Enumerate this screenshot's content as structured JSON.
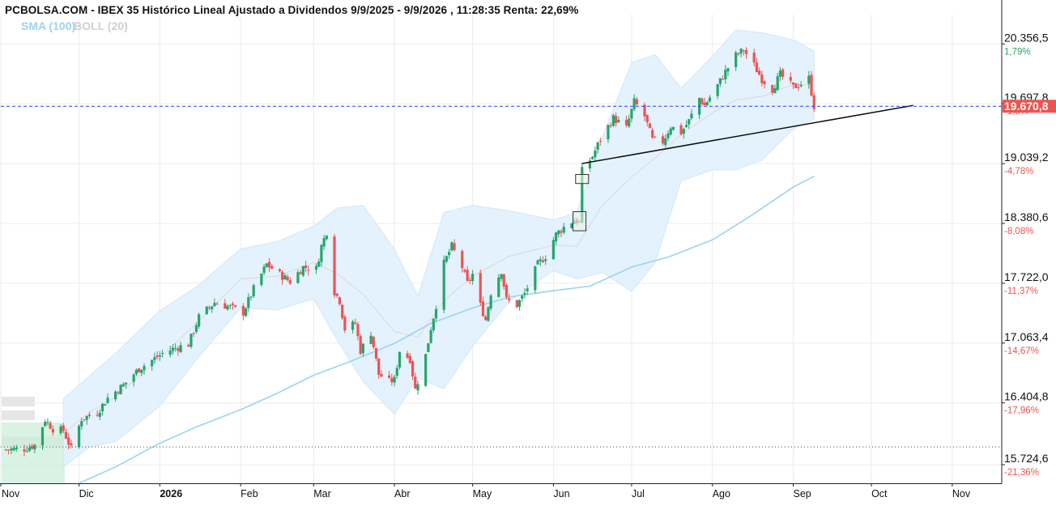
{
  "header": {
    "title": "PCBOLSA.COM - IBEX 35 Histórico Lineal Ajustado a Dividendos 9/9/2025 - 9/9/2026 , 11:28:35 Renta: 22,69%"
  },
  "legend": {
    "sma_label": "SMA (100)",
    "boll_label": "BOLL (20)"
  },
  "colors": {
    "up": "#26a56a",
    "down": "#ef5350",
    "sma": "#9bd3f0",
    "boll_fill": "#e3f2fd",
    "boll_mid": "#d9d9d9",
    "last_line": "#2a3cff",
    "last_badge": "#ef5350",
    "pct_pos": "#26a56a",
    "pct_neg": "#ef5350"
  },
  "chart_data": {
    "type": "candlestick",
    "y_axis": {
      "range": [
        15520,
        20680
      ],
      "ticks": [
        {
          "value": 20356.5,
          "label": "20.356,5",
          "pct": "1,79%"
        },
        {
          "value": 19697.8,
          "label": "19.697,8",
          "pct": "-1,5%"
        },
        {
          "value": 19039.2,
          "label": "19.039,2",
          "pct": "-4,78%"
        },
        {
          "value": 18380.6,
          "label": "18.380,6",
          "pct": "-8,08%"
        },
        {
          "value": 17722.0,
          "label": "17.722,0",
          "pct": "-11,37%"
        },
        {
          "value": 17063.4,
          "label": "17.063,4",
          "pct": "-14,67%"
        },
        {
          "value": 16404.8,
          "label": "16.404,8",
          "pct": "-17,96%"
        },
        {
          "value": 15724.6,
          "label": "15.724,6",
          "pct": "-21,36%"
        }
      ]
    },
    "x_axis": {
      "labels": [
        "Nov",
        "Dic",
        "2026",
        "Feb",
        "Mar",
        "Abr",
        "May",
        "Jun",
        "Jul",
        "Ago",
        "Sep",
        "Oct",
        "Nov"
      ]
    },
    "last_price": {
      "value": 19670.8,
      "label": "19.670,8"
    },
    "reference_line": 15920,
    "trendline": {
      "from": [
        "2026-06-12",
        19040
      ],
      "to": [
        "2026-10-17",
        19680
      ]
    },
    "marker_boxes": [
      {
        "date": "2026-06-11",
        "low": 18300,
        "high": 18510
      },
      {
        "date": "2026-06-12",
        "low": 18820,
        "high": 18920
      }
    ],
    "sma_100": [
      [
        "2025-12-01",
        15520
      ],
      [
        "2025-12-15",
        15700
      ],
      [
        "2026-01-01",
        15960
      ],
      [
        "2026-01-15",
        16140
      ],
      [
        "2026-02-01",
        16330
      ],
      [
        "2026-02-15",
        16510
      ],
      [
        "2026-03-01",
        16710
      ],
      [
        "2026-03-15",
        16860
      ],
      [
        "2026-04-01",
        17060
      ],
      [
        "2026-04-15",
        17280
      ],
      [
        "2026-05-01",
        17450
      ],
      [
        "2026-05-15",
        17570
      ],
      [
        "2026-06-01",
        17640
      ],
      [
        "2026-06-15",
        17690
      ],
      [
        "2026-07-01",
        17900
      ],
      [
        "2026-07-15",
        18010
      ],
      [
        "2026-08-01",
        18200
      ],
      [
        "2026-08-15",
        18450
      ],
      [
        "2026-09-01",
        18780
      ],
      [
        "2026-09-09",
        18900
      ]
    ],
    "bollinger": {
      "upper": [
        [
          "2025-11-25",
          16450
        ],
        [
          "2025-12-05",
          16700
        ],
        [
          "2025-12-15",
          16950
        ],
        [
          "2026-01-01",
          17420
        ],
        [
          "2026-01-15",
          17680
        ],
        [
          "2026-02-01",
          18100
        ],
        [
          "2026-02-15",
          18180
        ],
        [
          "2026-03-01",
          18350
        ],
        [
          "2026-03-10",
          18550
        ],
        [
          "2026-03-20",
          18580
        ],
        [
          "2026-04-01",
          18100
        ],
        [
          "2026-04-10",
          17580
        ],
        [
          "2026-04-20",
          18500
        ],
        [
          "2026-05-01",
          18580
        ],
        [
          "2026-05-15",
          18520
        ],
        [
          "2026-06-01",
          18420
        ],
        [
          "2026-06-10",
          18500
        ],
        [
          "2026-06-20",
          19350
        ],
        [
          "2026-07-01",
          20150
        ],
        [
          "2026-07-10",
          20240
        ],
        [
          "2026-07-20",
          19870
        ],
        [
          "2026-08-01",
          20220
        ],
        [
          "2026-08-10",
          20510
        ],
        [
          "2026-08-20",
          20480
        ],
        [
          "2026-09-01",
          20400
        ],
        [
          "2026-09-09",
          20280
        ]
      ],
      "lower": [
        [
          "2025-11-25",
          15700
        ],
        [
          "2025-12-05",
          15920
        ],
        [
          "2025-12-15",
          15980
        ],
        [
          "2026-01-01",
          16370
        ],
        [
          "2026-01-15",
          16880
        ],
        [
          "2026-02-01",
          17450
        ],
        [
          "2026-02-15",
          17430
        ],
        [
          "2026-03-01",
          17550
        ],
        [
          "2026-03-10",
          17100
        ],
        [
          "2026-03-20",
          16640
        ],
        [
          "2026-04-01",
          16280
        ],
        [
          "2026-04-10",
          16680
        ],
        [
          "2026-04-20",
          16560
        ],
        [
          "2026-05-01",
          17030
        ],
        [
          "2026-05-15",
          17520
        ],
        [
          "2026-06-01",
          17860
        ],
        [
          "2026-06-10",
          17770
        ],
        [
          "2026-06-20",
          17840
        ],
        [
          "2026-07-01",
          17630
        ],
        [
          "2026-07-10",
          17950
        ],
        [
          "2026-07-20",
          18850
        ],
        [
          "2026-08-01",
          18970
        ],
        [
          "2026-08-10",
          18970
        ],
        [
          "2026-08-20",
          19080
        ],
        [
          "2026-09-01",
          19420
        ],
        [
          "2026-09-09",
          19530
        ]
      ],
      "middle": [
        [
          "2025-11-25",
          16070
        ],
        [
          "2025-12-05",
          16300
        ],
        [
          "2025-12-15",
          16470
        ],
        [
          "2026-01-01",
          16900
        ],
        [
          "2026-01-15",
          17280
        ],
        [
          "2026-02-01",
          17770
        ],
        [
          "2026-02-15",
          17800
        ],
        [
          "2026-03-01",
          17950
        ],
        [
          "2026-03-10",
          17830
        ],
        [
          "2026-03-20",
          17600
        ],
        [
          "2026-04-01",
          17190
        ],
        [
          "2026-04-10",
          17130
        ],
        [
          "2026-04-20",
          17530
        ],
        [
          "2026-05-01",
          17800
        ],
        [
          "2026-05-15",
          18020
        ],
        [
          "2026-06-01",
          18140
        ],
        [
          "2026-06-10",
          18130
        ],
        [
          "2026-06-20",
          18590
        ],
        [
          "2026-07-01",
          18890
        ],
        [
          "2026-07-10",
          19100
        ],
        [
          "2026-07-20",
          19360
        ],
        [
          "2026-08-01",
          19600
        ],
        [
          "2026-08-10",
          19740
        ],
        [
          "2026-08-20",
          19780
        ],
        [
          "2026-09-01",
          19910
        ],
        [
          "2026-09-09",
          19900
        ]
      ]
    },
    "volume_profile_levels": [
      16420,
      16270,
      15980
    ],
    "price_path": [
      [
        "2025-11-03",
        15890
      ],
      [
        "2025-11-10",
        15900
      ],
      [
        "2025-11-14",
        15940
      ],
      [
        "2025-11-18",
        16220
      ],
      [
        "2025-11-21",
        16120
      ],
      [
        "2025-11-25",
        16100
      ],
      [
        "2025-11-28",
        15900
      ],
      [
        "2025-12-02",
        16230
      ],
      [
        "2025-12-08",
        16300
      ],
      [
        "2025-12-12",
        16460
      ],
      [
        "2025-12-18",
        16600
      ],
      [
        "2025-12-24",
        16780
      ],
      [
        "2026-01-02",
        16950
      ],
      [
        "2026-01-07",
        17010
      ],
      [
        "2026-01-12",
        17050
      ],
      [
        "2026-01-16",
        17350
      ],
      [
        "2026-01-22",
        17510
      ],
      [
        "2026-01-28",
        17460
      ],
      [
        "2026-02-02",
        17400
      ],
      [
        "2026-02-06",
        17660
      ],
      [
        "2026-02-11",
        17930
      ],
      [
        "2026-02-16",
        17820
      ],
      [
        "2026-02-20",
        17740
      ],
      [
        "2026-02-25",
        17900
      ],
      [
        "2026-03-02",
        17880
      ],
      [
        "2026-03-04",
        18130
      ],
      [
        "2026-03-06",
        18290
      ],
      [
        "2026-03-09",
        17630
      ],
      [
        "2026-03-11",
        17530
      ],
      [
        "2026-03-13",
        17220
      ],
      [
        "2026-03-17",
        17280
      ],
      [
        "2026-03-19",
        16980
      ],
      [
        "2026-03-23",
        17180
      ],
      [
        "2026-03-26",
        16720
      ],
      [
        "2026-03-30",
        16640
      ],
      [
        "2026-04-01",
        16660
      ],
      [
        "2026-04-03",
        16980
      ],
      [
        "2026-04-07",
        16890
      ],
      [
        "2026-04-09",
        16550
      ],
      [
        "2026-04-13",
        16930
      ],
      [
        "2026-04-15",
        17230
      ],
      [
        "2026-04-17",
        17480
      ],
      [
        "2026-04-20",
        17940
      ],
      [
        "2026-04-23",
        18130
      ],
      [
        "2026-04-27",
        17900
      ],
      [
        "2026-04-29",
        17720
      ],
      [
        "2026-05-01",
        17820
      ],
      [
        "2026-05-04",
        17480
      ],
      [
        "2026-05-06",
        17320
      ],
      [
        "2026-05-08",
        17620
      ],
      [
        "2026-05-12",
        17860
      ],
      [
        "2026-05-14",
        17540
      ],
      [
        "2026-05-18",
        17480
      ],
      [
        "2026-05-21",
        17610
      ],
      [
        "2026-05-26",
        17930
      ],
      [
        "2026-05-29",
        18020
      ],
      [
        "2026-06-02",
        18260
      ],
      [
        "2026-06-05",
        18340
      ],
      [
        "2026-06-09",
        18420
      ],
      [
        "2026-06-11",
        18390
      ],
      [
        "2026-06-12",
        18960
      ],
      [
        "2026-06-16",
        19120
      ],
      [
        "2026-06-19",
        19310
      ],
      [
        "2026-06-24",
        19540
      ],
      [
        "2026-06-29",
        19430
      ],
      [
        "2026-07-02",
        19720
      ],
      [
        "2026-07-06",
        19560
      ],
      [
        "2026-07-09",
        19300
      ],
      [
        "2026-07-13",
        19280
      ],
      [
        "2026-07-16",
        19450
      ],
      [
        "2026-07-20",
        19380
      ],
      [
        "2026-07-23",
        19510
      ],
      [
        "2026-07-27",
        19760
      ],
      [
        "2026-07-29",
        19680
      ],
      [
        "2026-08-03",
        19900
      ],
      [
        "2026-08-06",
        20050
      ],
      [
        "2026-08-10",
        20230
      ],
      [
        "2026-08-13",
        20290
      ],
      [
        "2026-08-17",
        20120
      ],
      [
        "2026-08-20",
        19970
      ],
      [
        "2026-08-24",
        19860
      ],
      [
        "2026-08-27",
        20020
      ],
      [
        "2026-09-01",
        19880
      ],
      [
        "2026-09-04",
        19920
      ],
      [
        "2026-09-07",
        19980
      ],
      [
        "2026-09-09",
        19670
      ]
    ]
  }
}
